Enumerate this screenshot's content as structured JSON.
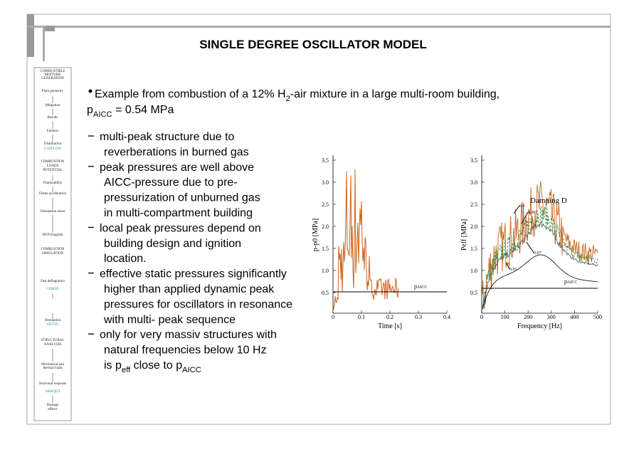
{
  "header": {
    "title": "SINGLE DEGREE OSCILLATOR MODEL"
  },
  "sidebar": [
    "COMBUSTIBLE",
    "MIXTURE",
    "GENERATION",
    "Plant geometry",
    "Mitigation",
    "Results",
    "Failures",
    "Distribution",
    "GASFLOW",
    "COMBUSTION",
    "LOADS",
    "POTENTIAL",
    "Flammability",
    "Flame acceleration",
    "Detonation onset",
    "DDT-Diagram",
    "COMBUSTION",
    "SIMULATION",
    "Fast deflagration",
    "COM3D",
    "Detonation",
    "DET3D",
    "STRUCTURAL",
    "ANALYSIS",
    "Mechanical and",
    "thermal loads",
    "Structural response",
    "ABAQUS",
    "Damage",
    "effects"
  ],
  "main_bullet": {
    "line1": [
      "Example from combustion of a 12% H",
      "2",
      "-air mixture in a large multi-room building,"
    ],
    "line2": [
      "p",
      "AICC",
      " = 0.54 MPa"
    ]
  },
  "bullets": [
    [
      "multi-peak structure due to",
      "reverberations in burned gas"
    ],
    [
      "peak pressures are well above",
      "AICC-pressure due to pre-",
      "pressurization of unburned gas",
      "in multi-compartment building"
    ],
    [
      "local peak pressures depend on",
      "building design and ignition",
      "location."
    ],
    [
      "effective static pressures significantly",
      "higher than applied dynamic peak",
      "pressures for oscillators in resonance",
      "with multi- peak sequence"
    ],
    [
      "only for very massiv structures with",
      "natural frequencies below 10 Hz",
      [
        "is p",
        {
          "sub": "eff"
        },
        " close to p",
        {
          "sub": "AICC"
        }
      ]
    ]
  ],
  "plot_time": {
    "ylabel": "p-p0 [MPa]",
    "xlabel": "Time [s]",
    "yticks": [
      "3.5",
      "3.0",
      "2.5",
      "2.0",
      "1.5",
      "1.0",
      "0.5"
    ],
    "xticks": [
      "0",
      "0.1",
      "0.2",
      "0.3",
      "0.4"
    ],
    "aicc": [
      "p",
      "AICC"
    ]
  },
  "plot_freq": {
    "ylabel": "Peff [MPa]",
    "xlabel": "Frequency [Hz]",
    "yticks": [
      "3.5",
      "3.0",
      "2.5",
      "2.0",
      "1.5",
      "1.0",
      "0.5"
    ],
    "xticks": [
      "0",
      "100",
      "200",
      "300",
      "400",
      "500"
    ],
    "legend_title": "Damping D",
    "damping_labels": [
      "0.0",
      "0.007",
      "0.07",
      "0.01"
    ],
    "aicc": [
      "p",
      "AICC"
    ]
  }
}
